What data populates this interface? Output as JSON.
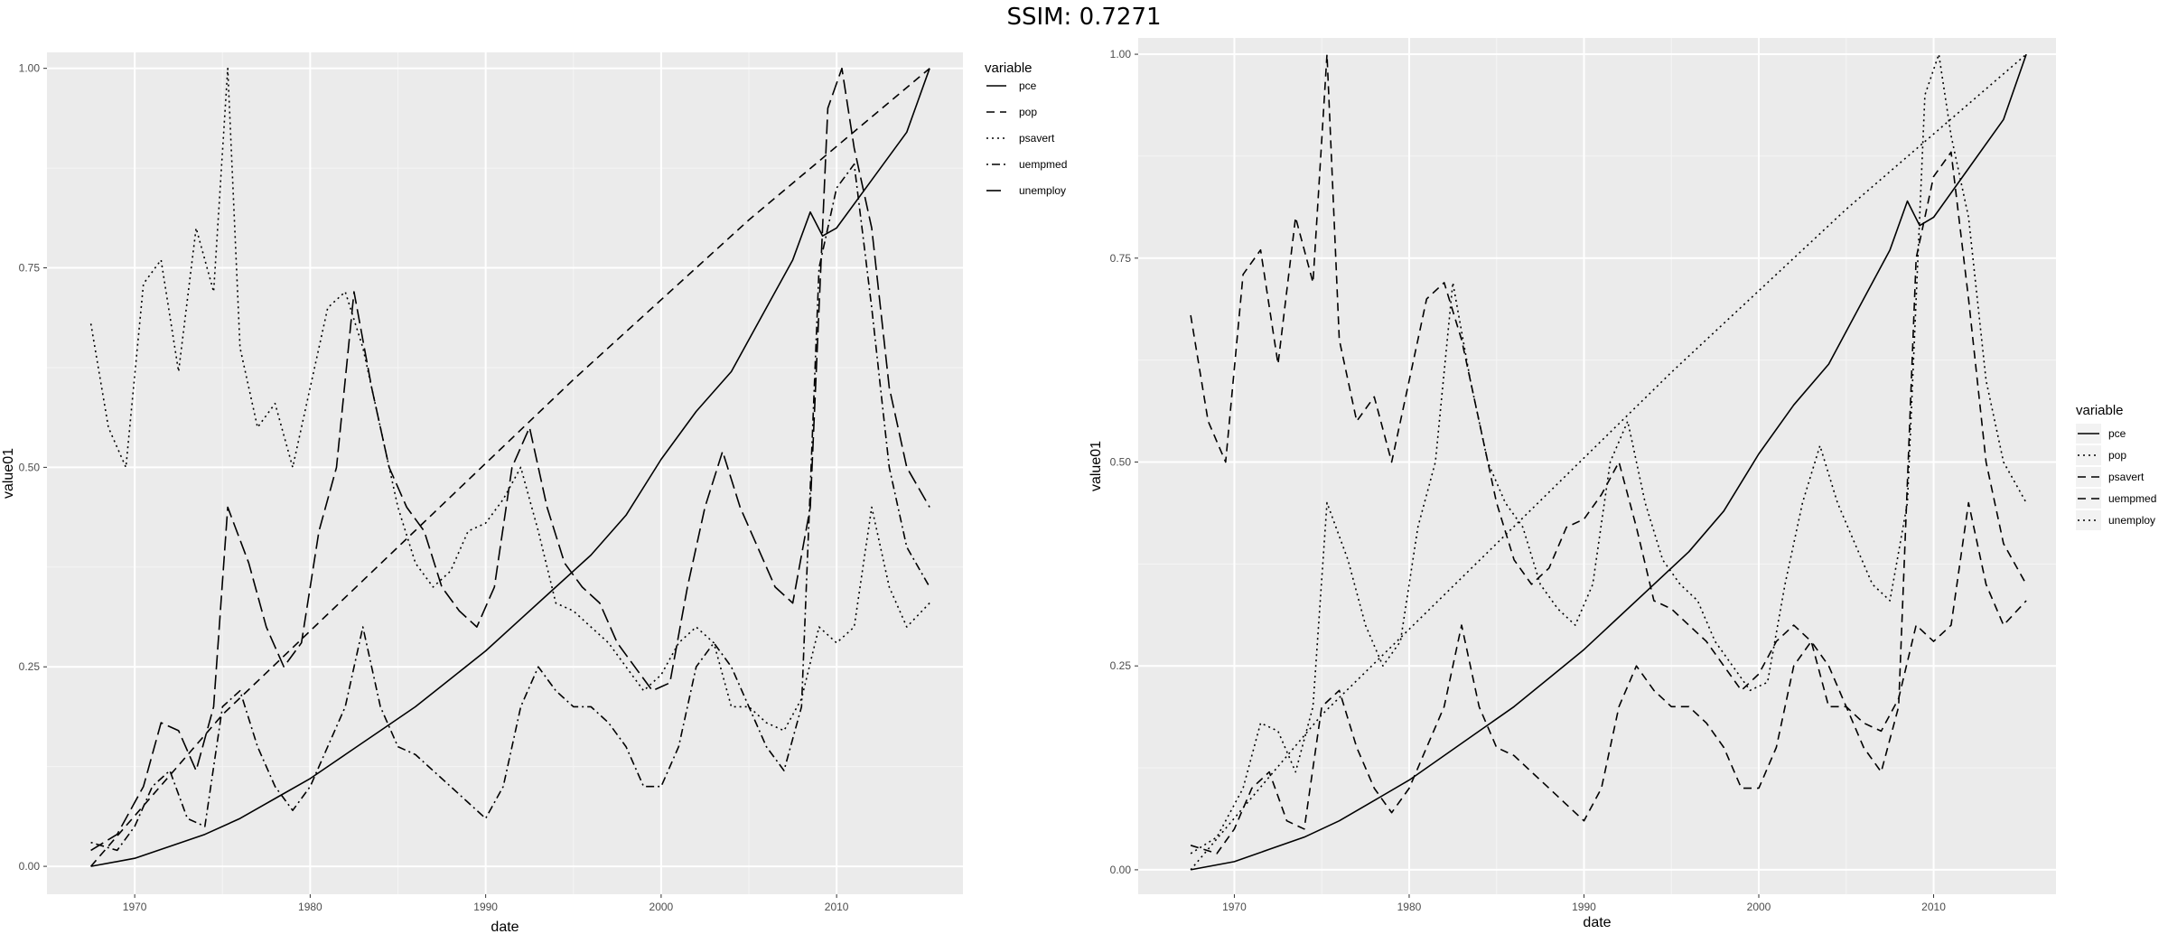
{
  "figure_title": "SSIM: 0.7271",
  "chart_data": [
    {
      "type": "line",
      "panel": "left",
      "xlabel": "date",
      "ylabel": "value01",
      "xlim": [
        1965.0,
        2017.2
      ],
      "ylim": [
        -0.035,
        1.02
      ],
      "x_ticks": [
        1970,
        1980,
        1990,
        2000,
        2010
      ],
      "y_ticks": [
        0,
        0.25,
        0.5,
        0.75,
        1
      ],
      "y_tick_labels": [
        "0.00",
        "0.25",
        "0.50",
        "0.75",
        "1.00"
      ],
      "grid": true,
      "legend_position": "top-right",
      "legend_title": "variable",
      "series": [
        {
          "name": "pce",
          "linetype": "solid",
          "x": [
            1967.5,
            1970,
            1972,
            1974,
            1976,
            1978,
            1980,
            1982,
            1984,
            1986,
            1988,
            1990,
            1992,
            1994,
            1996,
            1998,
            2000,
            2002,
            2004,
            2006,
            2007.5,
            2008.5,
            2009.2,
            2010,
            2012,
            2014,
            2015.3
          ],
          "y": [
            0,
            0.01,
            0.025,
            0.04,
            0.06,
            0.085,
            0.11,
            0.14,
            0.17,
            0.2,
            0.235,
            0.27,
            0.31,
            0.35,
            0.39,
            0.44,
            0.51,
            0.57,
            0.62,
            0.7,
            0.76,
            0.82,
            0.79,
            0.8,
            0.86,
            0.92,
            1.0
          ]
        },
        {
          "name": "pop",
          "linetype": "dashed",
          "x": [
            1967.5,
            1975,
            1985,
            1995,
            2005,
            2015.3
          ],
          "y": [
            0,
            0.19,
            0.4,
            0.61,
            0.81,
            1.0
          ]
        },
        {
          "name": "psavert",
          "linetype": "dotted",
          "x": [
            1967.5,
            1968.5,
            1969.5,
            1970.5,
            1971.5,
            1972.5,
            1973.5,
            1974.5,
            1975.3,
            1976,
            1977,
            1978,
            1979,
            1980,
            1981,
            1982,
            1983,
            1984,
            1985,
            1986,
            1987,
            1988,
            1989,
            1990,
            1991,
            1992,
            1993,
            1994,
            1995,
            1996,
            1997,
            1998,
            1999,
            2000,
            2001,
            2002,
            2003,
            2004,
            2005,
            2006,
            2007,
            2008,
            2009,
            2010,
            2011,
            2012,
            2013,
            2014,
            2015.3
          ],
          "y": [
            0.68,
            0.55,
            0.5,
            0.73,
            0.76,
            0.62,
            0.8,
            0.72,
            1.0,
            0.65,
            0.55,
            0.58,
            0.5,
            0.6,
            0.7,
            0.72,
            0.65,
            0.55,
            0.45,
            0.38,
            0.35,
            0.37,
            0.42,
            0.43,
            0.46,
            0.5,
            0.42,
            0.33,
            0.32,
            0.3,
            0.28,
            0.25,
            0.22,
            0.24,
            0.28,
            0.3,
            0.28,
            0.2,
            0.2,
            0.18,
            0.17,
            0.21,
            0.3,
            0.28,
            0.3,
            0.45,
            0.35,
            0.3,
            0.33
          ]
        },
        {
          "name": "uempmed",
          "linetype": "dotdash",
          "x": [
            1967.5,
            1969,
            1970,
            1971,
            1972,
            1973,
            1974,
            1975,
            1976,
            1977,
            1978,
            1979,
            1980,
            1981,
            1982,
            1983,
            1984,
            1985,
            1986,
            1987,
            1988,
            1989,
            1990,
            1991,
            1992,
            1993,
            1994,
            1995,
            1996,
            1997,
            1998,
            1999,
            2000,
            2001,
            2002,
            2003,
            2004,
            2005,
            2006,
            2007,
            2008,
            2009,
            2010,
            2011,
            2012,
            2013,
            2014,
            2015.3
          ],
          "y": [
            0.03,
            0.02,
            0.05,
            0.1,
            0.12,
            0.06,
            0.05,
            0.2,
            0.22,
            0.15,
            0.1,
            0.07,
            0.1,
            0.15,
            0.2,
            0.3,
            0.2,
            0.15,
            0.14,
            0.12,
            0.1,
            0.08,
            0.06,
            0.1,
            0.2,
            0.25,
            0.22,
            0.2,
            0.2,
            0.18,
            0.15,
            0.1,
            0.1,
            0.15,
            0.25,
            0.28,
            0.25,
            0.2,
            0.15,
            0.12,
            0.2,
            0.75,
            0.85,
            0.88,
            0.7,
            0.5,
            0.4,
            0.35
          ]
        },
        {
          "name": "unemploy",
          "linetype": "longdash",
          "x": [
            1967.5,
            1969,
            1970.5,
            1971.5,
            1972.5,
            1973.5,
            1974.5,
            1975.3,
            1976.5,
            1977.5,
            1978.5,
            1979.5,
            1980.5,
            1981.5,
            1982.5,
            1983.5,
            1984.5,
            1985.5,
            1986.5,
            1987.5,
            1988.5,
            1989.5,
            1990.5,
            1991.5,
            1992.5,
            1993.5,
            1994.5,
            1995.5,
            1996.5,
            1997.5,
            1998.5,
            1999.5,
            2000.5,
            2001.5,
            2002.5,
            2003.5,
            2004.5,
            2005.5,
            2006.5,
            2007.5,
            2008.5,
            2009.5,
            2010.3,
            2011,
            2012,
            2013,
            2014,
            2015.3
          ],
          "y": [
            0.02,
            0.04,
            0.1,
            0.18,
            0.17,
            0.12,
            0.2,
            0.45,
            0.38,
            0.3,
            0.25,
            0.28,
            0.42,
            0.5,
            0.72,
            0.6,
            0.5,
            0.45,
            0.42,
            0.35,
            0.32,
            0.3,
            0.35,
            0.5,
            0.55,
            0.45,
            0.38,
            0.35,
            0.33,
            0.28,
            0.25,
            0.22,
            0.23,
            0.35,
            0.45,
            0.52,
            0.45,
            0.4,
            0.35,
            0.33,
            0.45,
            0.95,
            1.0,
            0.9,
            0.8,
            0.6,
            0.5,
            0.45
          ]
        }
      ]
    },
    {
      "type": "line",
      "panel": "right",
      "xlabel": "date",
      "ylabel": "value01",
      "xlim": [
        1964.5,
        2017.0
      ],
      "ylim": [
        -0.03,
        1.02
      ],
      "x_ticks": [
        1970,
        1980,
        1990,
        2000,
        2010
      ],
      "y_ticks": [
        0,
        0.25,
        0.5,
        0.75,
        1
      ],
      "y_tick_labels": [
        "0.00",
        "0.25",
        "0.50",
        "0.75",
        "1.00"
      ],
      "grid": true,
      "legend_position": "right",
      "legend_title": "variable",
      "series": [
        {
          "name": "pce",
          "linetype": "solid",
          "x": [
            1967.5,
            1970,
            1972,
            1974,
            1976,
            1978,
            1980,
            1982,
            1984,
            1986,
            1988,
            1990,
            1992,
            1994,
            1996,
            1998,
            2000,
            2002,
            2004,
            2006,
            2007.5,
            2008.5,
            2009.2,
            2010,
            2012,
            2014,
            2015.3
          ],
          "y": [
            0,
            0.01,
            0.025,
            0.04,
            0.06,
            0.085,
            0.11,
            0.14,
            0.17,
            0.2,
            0.235,
            0.27,
            0.31,
            0.35,
            0.39,
            0.44,
            0.51,
            0.57,
            0.62,
            0.7,
            0.76,
            0.82,
            0.79,
            0.8,
            0.86,
            0.92,
            1.0
          ]
        },
        {
          "name": "pop",
          "linetype": "dotted",
          "x": [
            1967.5,
            1975,
            1985,
            1995,
            2005,
            2015.3
          ],
          "y": [
            0,
            0.19,
            0.4,
            0.61,
            0.81,
            1.0
          ]
        },
        {
          "name": "psavert",
          "linetype": "dashed",
          "x": [
            1967.5,
            1968.5,
            1969.5,
            1970.5,
            1971.5,
            1972.5,
            1973.5,
            1974.5,
            1975.3,
            1976,
            1977,
            1978,
            1979,
            1980,
            1981,
            1982,
            1983,
            1984,
            1985,
            1986,
            1987,
            1988,
            1989,
            1990,
            1991,
            1992,
            1993,
            1994,
            1995,
            1996,
            1997,
            1998,
            1999,
            2000,
            2001,
            2002,
            2003,
            2004,
            2005,
            2006,
            2007,
            2008,
            2009,
            2010,
            2011,
            2012,
            2013,
            2014,
            2015.3
          ],
          "y": [
            0.68,
            0.55,
            0.5,
            0.73,
            0.76,
            0.62,
            0.8,
            0.72,
            1.0,
            0.65,
            0.55,
            0.58,
            0.5,
            0.6,
            0.7,
            0.72,
            0.65,
            0.55,
            0.45,
            0.38,
            0.35,
            0.37,
            0.42,
            0.43,
            0.46,
            0.5,
            0.42,
            0.33,
            0.32,
            0.3,
            0.28,
            0.25,
            0.22,
            0.24,
            0.28,
            0.3,
            0.28,
            0.2,
            0.2,
            0.18,
            0.17,
            0.21,
            0.3,
            0.28,
            0.3,
            0.45,
            0.35,
            0.3,
            0.33
          ]
        },
        {
          "name": "uempmed",
          "linetype": "dashed",
          "x": [
            1967.5,
            1969,
            1970,
            1971,
            1972,
            1973,
            1974,
            1975,
            1976,
            1977,
            1978,
            1979,
            1980,
            1981,
            1982,
            1983,
            1984,
            1985,
            1986,
            1987,
            1988,
            1989,
            1990,
            1991,
            1992,
            1993,
            1994,
            1995,
            1996,
            1997,
            1998,
            1999,
            2000,
            2001,
            2002,
            2003,
            2004,
            2005,
            2006,
            2007,
            2008,
            2009,
            2010,
            2011,
            2012,
            2013,
            2014,
            2015.3
          ],
          "y": [
            0.03,
            0.02,
            0.05,
            0.1,
            0.12,
            0.06,
            0.05,
            0.2,
            0.22,
            0.15,
            0.1,
            0.07,
            0.1,
            0.15,
            0.2,
            0.3,
            0.2,
            0.15,
            0.14,
            0.12,
            0.1,
            0.08,
            0.06,
            0.1,
            0.2,
            0.25,
            0.22,
            0.2,
            0.2,
            0.18,
            0.15,
            0.1,
            0.1,
            0.15,
            0.25,
            0.28,
            0.25,
            0.2,
            0.15,
            0.12,
            0.2,
            0.75,
            0.85,
            0.88,
            0.7,
            0.5,
            0.4,
            0.35
          ]
        },
        {
          "name": "unemploy",
          "linetype": "dotted",
          "x": [
            1967.5,
            1969,
            1970.5,
            1971.5,
            1972.5,
            1973.5,
            1974.5,
            1975.3,
            1976.5,
            1977.5,
            1978.5,
            1979.5,
            1980.5,
            1981.5,
            1982.5,
            1983.5,
            1984.5,
            1985.5,
            1986.5,
            1987.5,
            1988.5,
            1989.5,
            1990.5,
            1991.5,
            1992.5,
            1993.5,
            1994.5,
            1995.5,
            1996.5,
            1997.5,
            1998.5,
            1999.5,
            2000.5,
            2001.5,
            2002.5,
            2003.5,
            2004.5,
            2005.5,
            2006.5,
            2007.5,
            2008.5,
            2009.5,
            2010.3,
            2011,
            2012,
            2013,
            2014,
            2015.3
          ],
          "y": [
            0.02,
            0.04,
            0.1,
            0.18,
            0.17,
            0.12,
            0.2,
            0.45,
            0.38,
            0.3,
            0.25,
            0.28,
            0.42,
            0.5,
            0.72,
            0.6,
            0.5,
            0.45,
            0.42,
            0.35,
            0.32,
            0.3,
            0.35,
            0.5,
            0.55,
            0.45,
            0.38,
            0.35,
            0.33,
            0.28,
            0.25,
            0.22,
            0.23,
            0.35,
            0.45,
            0.52,
            0.45,
            0.4,
            0.35,
            0.33,
            0.45,
            0.95,
            1.0,
            0.9,
            0.8,
            0.6,
            0.5,
            0.45
          ]
        }
      ]
    }
  ]
}
